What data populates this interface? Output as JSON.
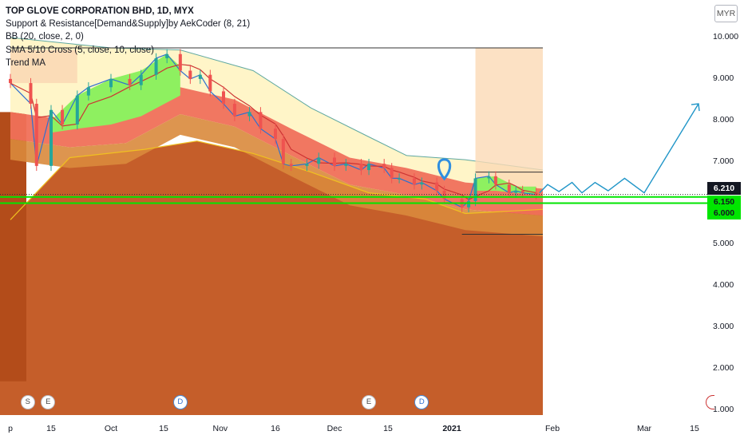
{
  "legend": {
    "title": "TOP GLOVE CORPORATION BHD, 1D, MYX",
    "lines": [
      "Support & Resistance[Demand&Supply]by AekCoder (8, 21)",
      "BB (20, close, 2, 0)",
      "SMA 5/10 Cross (5, close, 10, close)",
      "Trend MA"
    ]
  },
  "currency": "MYR",
  "price_labels": {
    "last": {
      "text": "6.210",
      "bg": "#131722",
      "fg": "#ffffff"
    },
    "support_1": {
      "text": "6.150",
      "bg": "#00e600",
      "fg": "#131722"
    },
    "support_2": {
      "text": "6.000",
      "bg": "#00e600",
      "fg": "#131722"
    }
  },
  "events": [
    {
      "letter": "S",
      "type": "split",
      "date": "Sep 7"
    },
    {
      "letter": "E",
      "type": "earnings",
      "date": "Sep 14"
    },
    {
      "letter": "D",
      "type": "dividend",
      "date": "Oct 20"
    },
    {
      "letter": "E",
      "type": "earnings",
      "date": "Dec 10"
    },
    {
      "letter": "D",
      "type": "dividend",
      "date": "Dec 24"
    }
  ],
  "colors": {
    "bull": "#26a69a",
    "bear": "#ef5350",
    "lower_zone": "#c2551f",
    "bb_upper": "#fff5c8",
    "trend_red": "#f07058",
    "trend_green": "#8ef060",
    "sma_fast": "#2f6fd0",
    "sma_slow": "#cc3333",
    "support_line": "#00e600",
    "projection": "#2196c8"
  },
  "chart_data": {
    "type": "candlestick",
    "title": "TOP GLOVE CORPORATION BHD, 1D, MYX",
    "y_axis": {
      "min": 1.0,
      "max": 10.0,
      "ticks": [
        "10.000",
        "9.000",
        "8.000",
        "7.000",
        "6.000",
        "5.000",
        "4.000",
        "3.000",
        "2.000",
        "1.000"
      ],
      "scale": "linear",
      "position": "right"
    },
    "x_axis": {
      "ticks": [
        {
          "label": "p",
          "date": "Sep 1"
        },
        {
          "label": "15",
          "date": "Sep 15"
        },
        {
          "label": "Oct",
          "date": "Oct 1"
        },
        {
          "label": "15",
          "date": "Oct 15"
        },
        {
          "label": "Nov",
          "date": "Nov 1"
        },
        {
          "label": "16",
          "date": "Nov 16"
        },
        {
          "label": "Dec",
          "date": "Dec 1"
        },
        {
          "label": "15",
          "date": "Dec 15"
        },
        {
          "label": "2021",
          "date": "Jan 1",
          "bold": true
        },
        {
          "label": "Feb",
          "date": "Feb 1"
        },
        {
          "label": "Mar",
          "date": "Mar 1"
        },
        {
          "label": "15",
          "date": "Mar 15"
        }
      ]
    },
    "series": [
      {
        "name": "close",
        "points": [
          [
            "Sep 1",
            8.9
          ],
          [
            "Sep 8",
            8.4
          ],
          [
            "Sep 10",
            6.9
          ],
          [
            "Sep 15",
            8.25
          ],
          [
            "Sep 18",
            7.9
          ],
          [
            "Sep 22",
            8.6
          ],
          [
            "Sep 25",
            8.8
          ],
          [
            "Oct 1",
            9.0
          ],
          [
            "Oct 6",
            8.85
          ],
          [
            "Oct 9",
            9.1
          ],
          [
            "Oct 13",
            9.5
          ],
          [
            "Oct 16",
            9.6
          ],
          [
            "Oct 20",
            9.2
          ],
          [
            "Oct 23",
            9.0
          ],
          [
            "Oct 26",
            9.1
          ],
          [
            "Oct 29",
            8.7
          ],
          [
            "Nov 2",
            8.4
          ],
          [
            "Nov 5",
            8.1
          ],
          [
            "Nov 9",
            8.2
          ],
          [
            "Nov 12",
            7.8
          ],
          [
            "Nov 16",
            7.55
          ],
          [
            "Nov 18",
            6.95
          ],
          [
            "Nov 20",
            6.9
          ],
          [
            "Nov 24",
            6.95
          ],
          [
            "Nov 27",
            7.1
          ],
          [
            "Dec 1",
            6.9
          ],
          [
            "Dec 4",
            6.95
          ],
          [
            "Dec 8",
            6.8
          ],
          [
            "Dec 10",
            6.95
          ],
          [
            "Dec 14",
            6.85
          ],
          [
            "Dec 16",
            6.6
          ],
          [
            "Dec 18",
            6.6
          ],
          [
            "Dec 22",
            6.45
          ],
          [
            "Dec 24",
            6.5
          ],
          [
            "Dec 28",
            6.3
          ],
          [
            "Dec 30",
            6.1
          ],
          [
            "Jan 4",
            5.9
          ],
          [
            "Jan 6",
            6.05
          ],
          [
            "Jan 8",
            6.6
          ],
          [
            "Jan 12",
            6.65
          ],
          [
            "Jan 14",
            6.45
          ],
          [
            "Jan 18",
            6.25
          ],
          [
            "Jan 20",
            6.3
          ],
          [
            "Jan 22",
            6.25
          ],
          [
            "Jan 26",
            6.21
          ]
        ]
      }
    ],
    "bollinger_upper": [
      [
        "Sep 1",
        10.0
      ],
      [
        "Oct 1",
        9.75
      ],
      [
        "Oct 20",
        9.7
      ],
      [
        "Nov 10",
        9.2
      ],
      [
        "Nov 25",
        8.3
      ],
      [
        "Dec 10",
        7.6
      ],
      [
        "Dec 20",
        7.15
      ],
      [
        "Jan 5",
        7.05
      ],
      [
        "Jan 28",
        6.8
      ]
    ],
    "bollinger_lower": [
      [
        "Sep 1",
        5.6
      ],
      [
        "Sep 20",
        7.1
      ],
      [
        "Oct 10",
        7.3
      ],
      [
        "Oct 25",
        7.5
      ],
      [
        "Nov 10",
        7.2
      ],
      [
        "Nov 25",
        6.75
      ],
      [
        "Dec 10",
        6.25
      ],
      [
        "Dec 25",
        6.1
      ],
      [
        "Jan 5",
        5.75
      ],
      [
        "Jan 28",
        5.85
      ]
    ],
    "trend_ma": [
      [
        "Sep 1",
        8.2
      ],
      [
        "Sep 20",
        8.0
      ],
      [
        "Oct 5",
        8.1
      ],
      [
        "Oct 20",
        8.8
      ],
      [
        "Nov 5",
        8.5
      ],
      [
        "Nov 20",
        7.8
      ],
      [
        "Dec 5",
        7.1
      ],
      [
        "Dec 20",
        6.85
      ],
      [
        "Jan 5",
        6.5
      ],
      [
        "Jan 28",
        6.35
      ]
    ],
    "support_levels": [
      6.21,
      6.15,
      6.0,
      5.25
    ],
    "resistance_levels": [
      9.75,
      6.75
    ],
    "projection_path": [
      [
        "Jan 27",
        6.25
      ],
      [
        "Jan 30",
        6.45
      ],
      [
        "Feb 3",
        6.28
      ],
      [
        "Feb 7",
        6.5
      ],
      [
        "Feb 10",
        6.25
      ],
      [
        "Feb 14",
        6.5
      ],
      [
        "Feb 18",
        6.3
      ],
      [
        "Feb 23",
        6.6
      ],
      [
        "Mar 1",
        6.25
      ],
      [
        "Mar 15",
        8.4
      ]
    ],
    "grid": false,
    "legend_position": "top-left"
  }
}
